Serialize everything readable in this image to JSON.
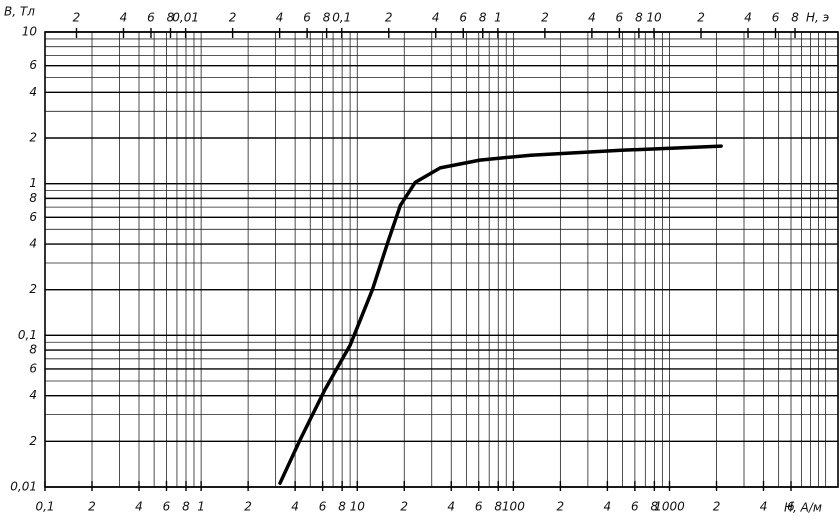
{
  "chart_data": {
    "type": "line",
    "y_label": "В, Тл",
    "x_label": "Н, А/м",
    "x2_label": "Н, э",
    "log_x": true,
    "log_y": true,
    "grid": true,
    "minor_grid": true,
    "xlim": [
      0.1,
      12000
    ],
    "x2lim": [
      0.001257,
      150.8
    ],
    "ylim": [
      0.01,
      10
    ],
    "xticks": [
      {
        "value": 0.1,
        "label": "0,1"
      },
      {
        "value": 0.2,
        "label": "2"
      },
      {
        "value": 0.4,
        "label": "4"
      },
      {
        "value": 0.6,
        "label": "6"
      },
      {
        "value": 0.8,
        "label": "8"
      },
      1,
      {
        "value": 2,
        "label": "2"
      },
      {
        "value": 4,
        "label": "4"
      },
      {
        "value": 6,
        "label": "6"
      },
      {
        "value": 8,
        "label": "8"
      },
      10,
      {
        "value": 20,
        "label": "2"
      },
      {
        "value": 40,
        "label": "4"
      },
      {
        "value": 60,
        "label": "6"
      },
      {
        "value": 80,
        "label": "8"
      },
      100,
      {
        "value": 200,
        "label": "2"
      },
      {
        "value": 400,
        "label": "4"
      },
      {
        "value": 600,
        "label": "6"
      },
      {
        "value": 800,
        "label": "8"
      },
      1000,
      {
        "value": 2000,
        "label": "2"
      },
      {
        "value": 4000,
        "label": "4"
      },
      {
        "value": 6000,
        "label": "6"
      }
    ],
    "x2ticks": [
      {
        "value": 0.002,
        "label": "2"
      },
      {
        "value": 0.004,
        "label": "4"
      },
      {
        "value": 0.006,
        "label": "6"
      },
      {
        "value": 0.008,
        "label": "8"
      },
      {
        "value": 0.01,
        "label": "0,01"
      },
      {
        "value": 0.02,
        "label": "2"
      },
      {
        "value": 0.04,
        "label": "4"
      },
      {
        "value": 0.06,
        "label": "6"
      },
      {
        "value": 0.08,
        "label": "8"
      },
      {
        "value": 0.1,
        "label": "0,1"
      },
      {
        "value": 0.2,
        "label": "2"
      },
      {
        "value": 0.4,
        "label": "4"
      },
      {
        "value": 0.6,
        "label": "6"
      },
      {
        "value": 0.8,
        "label": "8"
      },
      1,
      2,
      4,
      6,
      8,
      10,
      {
        "value": 20,
        "label": "2"
      },
      {
        "value": 40,
        "label": "4"
      },
      {
        "value": 60,
        "label": "6"
      },
      {
        "value": 80,
        "label": "8"
      }
    ],
    "yticks": [
      10,
      6,
      4,
      2,
      1,
      {
        "value": 0.8,
        "label": "8"
      },
      {
        "value": 0.6,
        "label": "6"
      },
      {
        "value": 0.4,
        "label": "4"
      },
      {
        "value": 0.2,
        "label": "2"
      },
      {
        "value": 0.1,
        "label": "0,1"
      },
      {
        "value": 0.08,
        "label": "8"
      },
      {
        "value": 0.06,
        "label": "6"
      },
      {
        "value": 0.04,
        "label": "4"
      },
      {
        "value": 0.02,
        "label": "2"
      },
      {
        "value": 0.01,
        "label": "0,01"
      }
    ],
    "series": [
      {
        "color": "#000000",
        "x": [
          3.2,
          4.3,
          6.2,
          9.0,
          12.5,
          15.8,
          18.9,
          23.5,
          34,
          61,
          129,
          490,
          2140
        ],
        "values": [
          0.0106,
          0.0204,
          0.0437,
          0.086,
          0.2,
          0.42,
          0.72,
          1.02,
          1.27,
          1.43,
          1.54,
          1.66,
          1.77
        ]
      }
    ]
  }
}
